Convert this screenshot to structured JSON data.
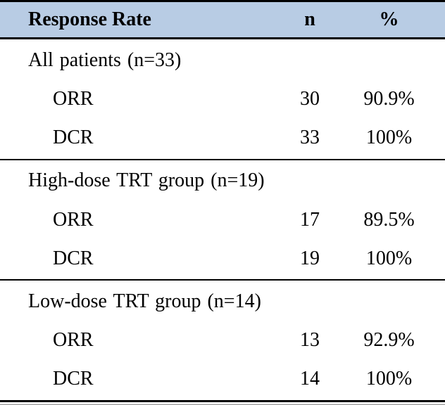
{
  "table": {
    "header": {
      "response_rate": "Response Rate",
      "n": "n",
      "pct": "%"
    },
    "sections": [
      {
        "group": "All patients (n=33)",
        "rows": [
          {
            "label": "ORR",
            "n": "30",
            "pct": "90.9%"
          },
          {
            "label": "DCR",
            "n": "33",
            "pct": "100%"
          }
        ]
      },
      {
        "group": "High-dose TRT group (n=19)",
        "rows": [
          {
            "label": "ORR",
            "n": "17",
            "pct": "89.5%"
          },
          {
            "label": "DCR",
            "n": "19",
            "pct": "100%"
          }
        ]
      },
      {
        "group": "Low-dose TRT group (n=14)",
        "rows": [
          {
            "label": "ORR",
            "n": "13",
            "pct": "92.9%"
          },
          {
            "label": "DCR",
            "n": "14",
            "pct": "100%"
          }
        ]
      }
    ],
    "colors": {
      "header_bg": "#b8cce4",
      "rule": "#000000",
      "text": "#000000"
    }
  },
  "chart_data": {
    "type": "table",
    "title": "Response Rate",
    "columns": [
      "Response Rate",
      "n",
      "%"
    ],
    "rows": [
      [
        "All patients (n=33)",
        "",
        ""
      ],
      [
        "ORR",
        "30",
        "90.9%"
      ],
      [
        "DCR",
        "33",
        "100%"
      ],
      [
        "High-dose TRT group (n=19)",
        "",
        ""
      ],
      [
        "ORR",
        "17",
        "89.5%"
      ],
      [
        "DCR",
        "19",
        "100%"
      ],
      [
        "Low-dose TRT group (n=14)",
        "",
        ""
      ],
      [
        "ORR",
        "13",
        "92.9%"
      ],
      [
        "DCR",
        "14",
        "100%"
      ]
    ]
  }
}
